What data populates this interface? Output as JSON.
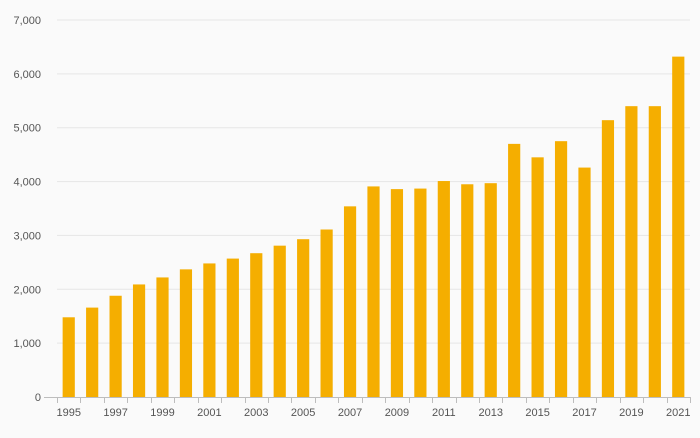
{
  "chart_data": {
    "type": "bar",
    "title": "",
    "xlabel": "",
    "ylabel": "",
    "ylim": [
      0,
      7000
    ],
    "grid": true,
    "legend": "none",
    "bar_color": "#f5ae00",
    "grid_color": "#e6e6e6",
    "yticks": [
      0,
      1000,
      2000,
      3000,
      4000,
      5000,
      6000,
      7000
    ],
    "ytick_labels": [
      "0",
      "1,000",
      "2,000",
      "3,000",
      "4,000",
      "5,000",
      "6,000",
      "7,000"
    ],
    "categories": [
      "1995",
      "1996",
      "1997",
      "1998",
      "1999",
      "2000",
      "2001",
      "2002",
      "2003",
      "2004",
      "2005",
      "2006",
      "2007",
      "2008",
      "2009",
      "2010",
      "2011",
      "2012",
      "2013",
      "2014",
      "2015",
      "2016",
      "2017",
      "2018",
      "2019",
      "2020",
      "2021"
    ],
    "xtick_labels": [
      "1995",
      "1997",
      "1999",
      "2001",
      "2003",
      "2005",
      "2007",
      "2009",
      "2011",
      "2013",
      "2015",
      "2017",
      "2019",
      "2021"
    ],
    "values": [
      1480,
      1660,
      1880,
      2090,
      2220,
      2370,
      2480,
      2570,
      2670,
      2810,
      2930,
      3110,
      3540,
      3910,
      3860,
      3870,
      4010,
      3950,
      3970,
      4700,
      4450,
      4750,
      4260,
      5140,
      5400,
      5400,
      6320
    ]
  }
}
